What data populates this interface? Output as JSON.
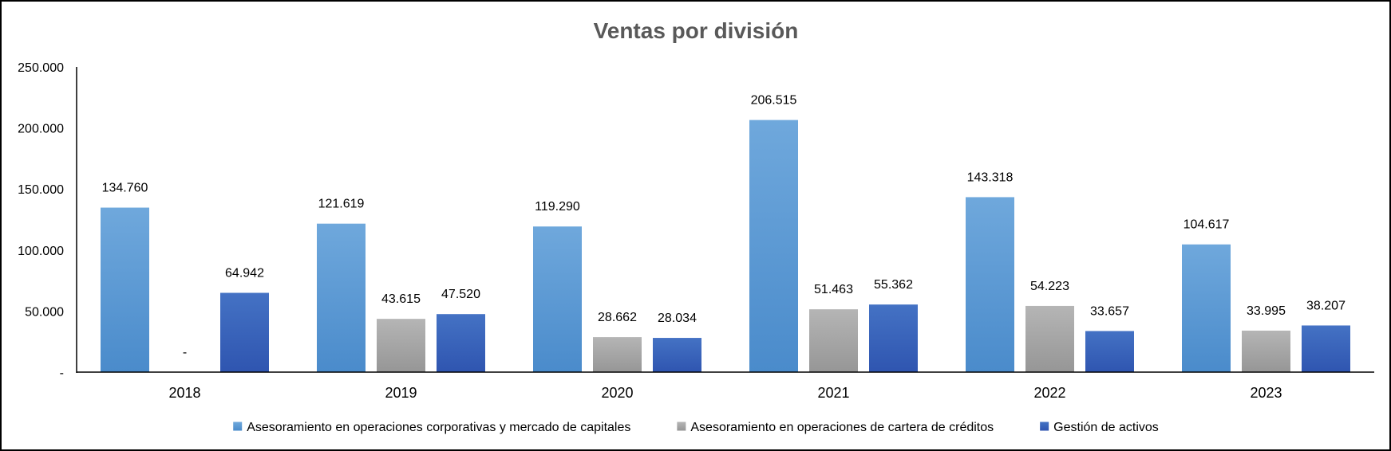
{
  "chart_data": {
    "type": "bar",
    "title": "Ventas por división",
    "xlabel": "",
    "ylabel": "",
    "ylim": [
      0,
      250000
    ],
    "yticks": [
      0,
      50000,
      100000,
      150000,
      200000,
      250000
    ],
    "ytick_labels": [
      "-",
      "50.000",
      "100.000",
      "150.000",
      "200.000",
      "250.000"
    ],
    "categories": [
      "2018",
      "2019",
      "2020",
      "2021",
      "2022",
      "2023"
    ],
    "grid": false,
    "legend_position": "bottom",
    "series": [
      {
        "name": "Asesoramiento en operaciones corporativas y mercado de capitales",
        "color": "#5B9BD5",
        "color_light": "#6FA8DC",
        "color_dark": "#4A8BCB",
        "values": [
          134760,
          121619,
          119290,
          206515,
          143318,
          104617
        ],
        "labels": [
          "134.760",
          "121.619",
          "119.290",
          "206.515",
          "143.318",
          "104.617"
        ]
      },
      {
        "name": "Asesoramiento en operaciones de cartera de créditos",
        "color": "#A5A5A5",
        "color_light": "#B5B5B5",
        "color_dark": "#969696",
        "values": [
          0,
          43615,
          28662,
          51463,
          54223,
          33995
        ],
        "labels": [
          "-",
          "43.615",
          "28.662",
          "51.463",
          "54.223",
          "33.995"
        ]
      },
      {
        "name": "Gestión de activos",
        "color": "#3A65C8",
        "color_light": "#4472C4",
        "color_dark": "#2F55B0",
        "values": [
          64942,
          47520,
          28034,
          55362,
          33657,
          38207
        ],
        "labels": [
          "64.942",
          "47.520",
          "28.034",
          "55.362",
          "33.657",
          "38.207"
        ]
      }
    ]
  }
}
